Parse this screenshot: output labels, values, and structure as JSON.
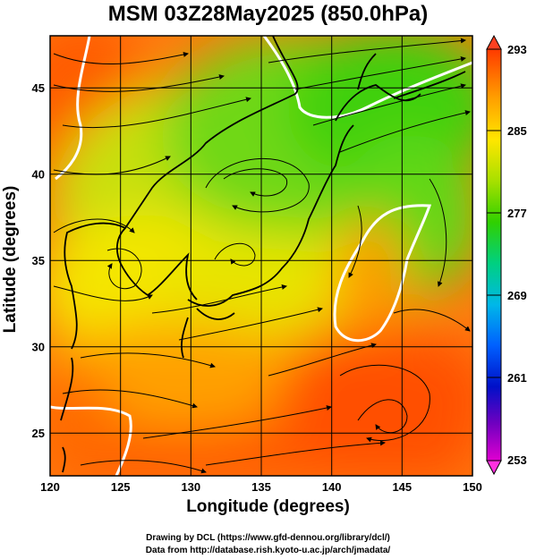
{
  "title": "MSM 03Z28May2025 (850.0hPa)",
  "x_axis": {
    "label": "Longitude (degrees)",
    "range": [
      120,
      150
    ],
    "ticks": [
      "120",
      "125",
      "130",
      "135",
      "140",
      "145",
      "150"
    ]
  },
  "y_axis": {
    "label": "Latitude  (degrees)",
    "range": [
      22.5,
      48
    ],
    "ticks": [
      "25",
      "30",
      "35",
      "40",
      "45"
    ]
  },
  "colorbar": {
    "labels": [
      "293",
      "285",
      "277",
      "269",
      "261",
      "253"
    ],
    "range": [
      253,
      293
    ],
    "colors": [
      "#ff3a00",
      "#ffa000",
      "#ffe600",
      "#a8e000",
      "#30d000",
      "#00d080",
      "#00b8e8",
      "#0060ff",
      "#0010c8",
      "#7000c0",
      "#e000d0"
    ]
  },
  "credits": {
    "line1": "Drawing by DCL (https://www.gfd-dennou.org/library/dcl/)",
    "line2": "Data from http://database.rish.kyoto-u.ac.jp/arch/jmadata/"
  },
  "colors": {
    "warm": "#ff5a00",
    "mid": "#f8e800",
    "cool": "#60d020",
    "contour": "#ffffff",
    "coast": "#000000"
  }
}
